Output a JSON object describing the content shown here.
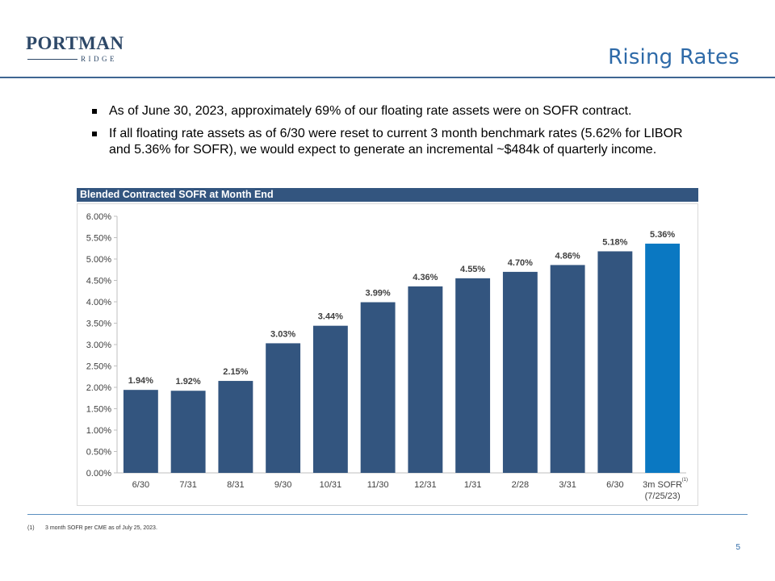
{
  "logo": {
    "name": "PORTMAN",
    "sub": "RIDGE"
  },
  "title": "Rising Rates",
  "bullets": [
    "As of June 30, 2023, approximately 69% of our floating rate assets were on SOFR contract.",
    "If all floating rate assets as of 6/30 were reset to current 3 month benchmark rates (5.62% for LIBOR and 5.36% for SOFR), we would expect to generate an incremental ~$484k of quarterly income."
  ],
  "chart_header": "Blended Contracted SOFR at Month End",
  "chart_data": {
    "type": "bar",
    "title": "Blended Contracted SOFR at Month End",
    "categories": [
      "6/30",
      "7/31",
      "8/31",
      "9/30",
      "10/31",
      "11/30",
      "12/31",
      "1/31",
      "2/28",
      "3/31",
      "6/30",
      "3m SOFR"
    ],
    "category_sublabels": [
      "",
      "",
      "",
      "",
      "",
      "",
      "",
      "",
      "",
      "",
      "",
      "(7/25/23)"
    ],
    "category_superscripts": [
      "",
      "",
      "",
      "",
      "",
      "",
      "",
      "",
      "",
      "",
      "",
      "(1)"
    ],
    "values": [
      1.94,
      1.92,
      2.15,
      3.03,
      3.44,
      3.99,
      4.36,
      4.55,
      4.7,
      4.86,
      5.18,
      5.36
    ],
    "value_labels": [
      "1.94%",
      "1.92%",
      "2.15%",
      "3.03%",
      "3.44%",
      "3.99%",
      "4.36%",
      "4.55%",
      "4.70%",
      "4.86%",
      "5.18%",
      "5.36%"
    ],
    "ylim": [
      0,
      6
    ],
    "yticks": [
      0,
      0.5,
      1,
      1.5,
      2,
      2.5,
      3,
      3.5,
      4,
      4.5,
      5,
      5.5,
      6
    ],
    "ytick_labels": [
      "0.00%",
      "0.50%",
      "1.00%",
      "1.50%",
      "2.00%",
      "2.50%",
      "3.00%",
      "3.50%",
      "4.00%",
      "4.50%",
      "5.00%",
      "5.50%",
      "6.00%"
    ],
    "xlabel": "",
    "ylabel": "",
    "grid": false,
    "colors": {
      "bar": "#33557f",
      "highlight": "#0a78c2",
      "axis": "#bfbfbf"
    },
    "highlight_index": 11
  },
  "footnote": {
    "num": "(1)",
    "text": "3 month SOFR per CME as of July 25, 2023."
  },
  "page_number": "5"
}
